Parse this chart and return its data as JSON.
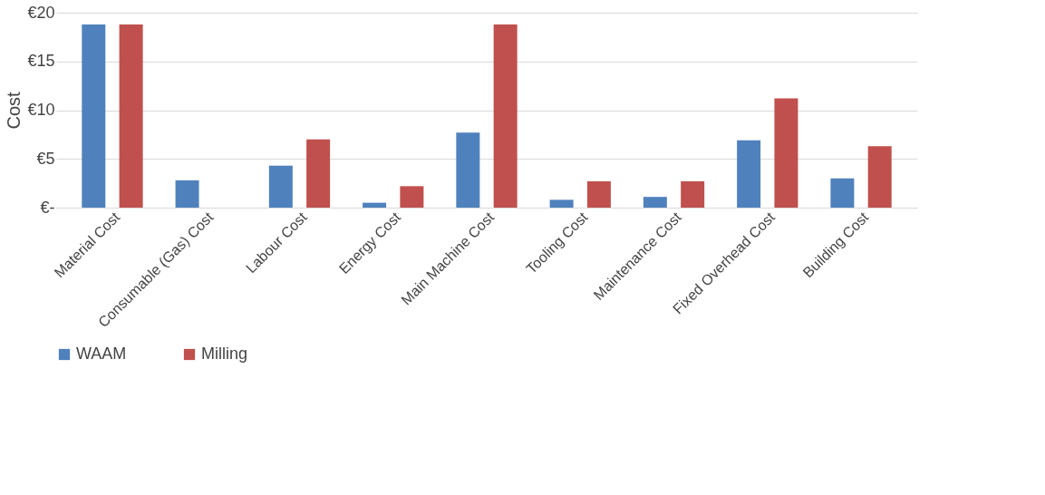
{
  "chart_data": {
    "type": "bar",
    "ylabel": "Cost",
    "categories": [
      "Material Cost",
      "Consumable (Gas) Cost",
      "Labour Cost",
      "Energy Cost",
      "Main Machine Cost",
      "Tooling Cost",
      "Maintenance Cost",
      "Fixed Overhead Cost",
      "Building Cost"
    ],
    "series": [
      {
        "name": "WAAM",
        "color": "#4f81bd",
        "values": [
          18.8,
          2.8,
          4.3,
          0.5,
          7.7,
          0.8,
          1.1,
          6.9,
          3.0
        ]
      },
      {
        "name": "Milling",
        "color": "#c0504d",
        "values": [
          18.8,
          0,
          7.0,
          2.2,
          18.8,
          2.7,
          2.7,
          11.2,
          6.3
        ]
      }
    ],
    "ylim": [
      0,
      20
    ],
    "yticks": [
      {
        "value": 0,
        "label": "€-"
      },
      {
        "value": 5,
        "label": "€5"
      },
      {
        "value": 10,
        "label": "€10"
      },
      {
        "value": 15,
        "label": "€15"
      },
      {
        "value": 20,
        "label": "€20"
      }
    ],
    "grid": "y",
    "legend": "bottom"
  }
}
